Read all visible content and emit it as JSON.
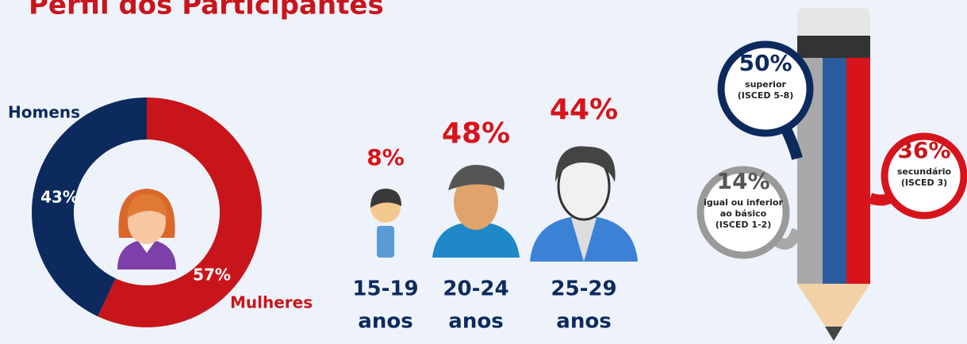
{
  "title": "Perfil dos Participantes",
  "chart_data": {
    "type": "donut",
    "categories": [
      "Homens",
      "Mulheres"
    ],
    "values": [
      43,
      57
    ],
    "value_labels": [
      "43%",
      "57%"
    ],
    "colors": [
      "#0d2a5e",
      "#c8151b"
    ]
  },
  "age_groups": [
    {
      "percent": "8%",
      "range": "15-19",
      "unit": "anos"
    },
    {
      "percent": "48%",
      "range": "20-24",
      "unit": "anos"
    },
    {
      "percent": "44%",
      "range": "25-29",
      "unit": "anos"
    }
  ],
  "education": [
    {
      "percent": "50%",
      "lines": [
        "superior",
        "(ISCED 5-8)"
      ]
    },
    {
      "percent": "36%",
      "lines": [
        "secundário",
        "(ISCED 3)"
      ]
    },
    {
      "percent": "14%",
      "lines": [
        "igual ou inferior",
        "ao básico",
        "(ISCED 1-2)"
      ]
    }
  ]
}
